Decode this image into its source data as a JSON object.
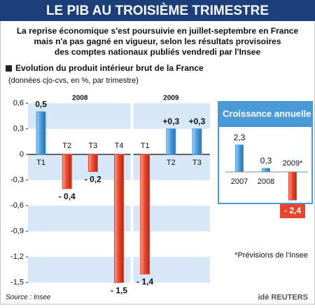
{
  "header": {
    "title": "LE PIB AU TROISIÈME TRIMESTRE",
    "intro": [
      "La reprise économique s'est poursuivie en juillet-septembre en France",
      "mais n'a pas gagné en vigueur, selon les résultats provisoires",
      "des comptes nationaux publiés vendredi par l'Insee"
    ]
  },
  "chart_data": [
    {
      "type": "bar",
      "title": "Evolution du produit intérieur brut de la France",
      "subtitle": "(données cjo-cvs, en %, par trimestre)",
      "groups": [
        "2008",
        "2009"
      ],
      "group_sizes": [
        4,
        3
      ],
      "categories": [
        "T1",
        "T2",
        "T3",
        "T4",
        "T1",
        "T2",
        "T3"
      ],
      "values": [
        0.5,
        -0.4,
        -0.2,
        -1.5,
        -1.4,
        0.3,
        0.3
      ],
      "value_labels": [
        "0,5",
        "- 0,4",
        "- 0,2",
        "- 1,5",
        "- 1,4",
        "+0,3",
        "+0,3"
      ],
      "positive_color": "#4a9ad8",
      "negative_color": "#e8452c",
      "ylim": [
        -1.56,
        0.7
      ],
      "yticks": [
        {
          "value": 0.6,
          "label": "0,6"
        },
        {
          "value": 0.3,
          "label": "0,3"
        },
        0,
        {
          "value": -0.3,
          "label": "-0,3"
        },
        {
          "value": -0.6,
          "label": "-0,6"
        },
        {
          "value": -0.9,
          "label": "-0,9"
        },
        {
          "value": -1.2,
          "label": "-1,2"
        },
        {
          "value": -1.5,
          "label": "-1,5"
        }
      ]
    },
    {
      "type": "bar",
      "title": "Croissance annuelle",
      "categories": [
        "2007",
        "2008",
        "2009*"
      ],
      "values": [
        2.3,
        0.3,
        -2.4
      ],
      "value_labels": [
        "2,3",
        "0,3",
        "- 2,4"
      ],
      "positive_color": "#4a9ad8",
      "negative_color": "#e8452c",
      "note": "*Prévisions de l'Insee"
    }
  ],
  "footer": {
    "source": "Source : Insee",
    "logo": "idé REUTERS"
  }
}
